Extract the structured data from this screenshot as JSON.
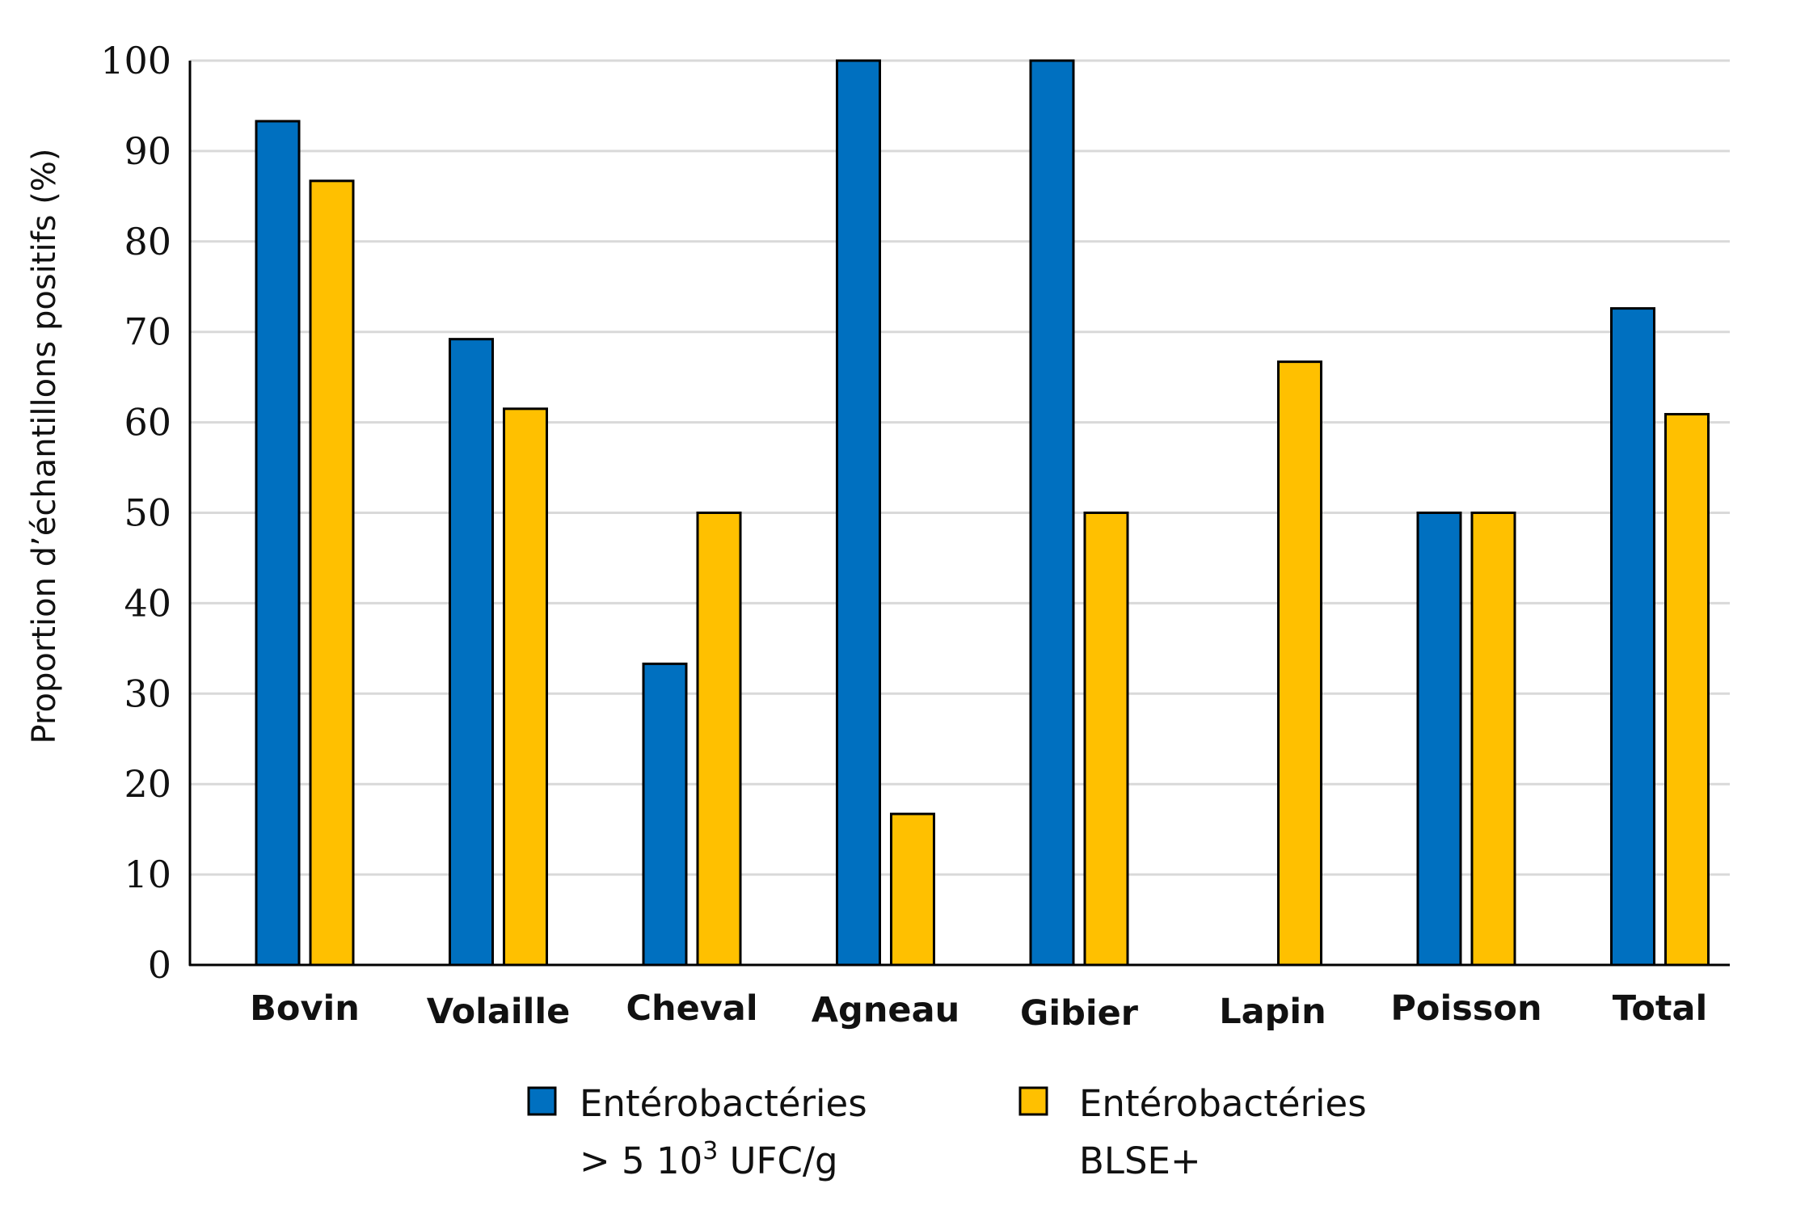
{
  "chart_data": {
    "type": "bar",
    "categories": [
      "Bovin",
      "Volaille",
      "Cheval",
      "Agneau",
      "Gibier",
      "Lapin",
      "Poisson",
      "Total"
    ],
    "series": [
      {
        "name": "Entérobactéries > 5 10³ UFC/g",
        "label_line1": "Entérobactéries",
        "label_line2_prefix": "> 5 10",
        "label_line2_sup": "3",
        "label_line2_suffix": " UFC/g",
        "color": "#0070C0",
        "values": [
          93.3,
          69.2,
          33.3,
          100,
          100,
          0,
          50,
          72.6
        ]
      },
      {
        "name": "Entérobactéries BLSE+",
        "label_line1": "Entérobactéries",
        "label_line2": "BLSE+",
        "color": "#FFC000",
        "values": [
          86.7,
          61.5,
          50,
          16.7,
          50,
          66.7,
          50,
          60.9
        ]
      }
    ],
    "yticks": [
      "0",
      "10",
      "20",
      "30",
      "40",
      "50",
      "60",
      "70",
      "80",
      "90",
      "100"
    ],
    "ylim": [
      0,
      100
    ],
    "ylabel": "Proportion d’échantillons positifs (%)",
    "xlabel": "",
    "title": "",
    "grid": true,
    "grid_color": "#D9D9D9",
    "legend": "bottom"
  }
}
